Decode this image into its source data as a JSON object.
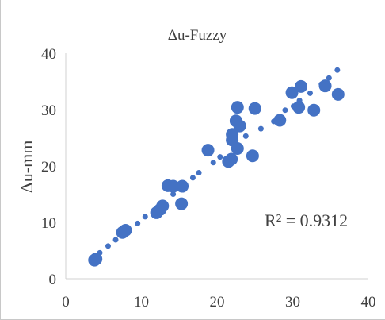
{
  "chart_data": {
    "type": "scatter",
    "title": "Δu-Fuzzy",
    "xlabel": "",
    "ylabel": "Δu-mm",
    "xlim": [
      0,
      40
    ],
    "ylim": [
      0,
      40
    ],
    "xticks": [
      "0",
      "10",
      "20",
      "30",
      "40"
    ],
    "yticks": [
      "0",
      "10",
      "20",
      "30",
      "40"
    ],
    "grid": false,
    "annotation": "R² = 0.9312",
    "colors": {
      "point": "#4472c4",
      "axis": "#d0d0d0",
      "text": "#404040"
    },
    "series": [
      {
        "points": [
          [
            4.0,
            3.5
          ],
          [
            3.8,
            3.3
          ],
          [
            7.5,
            8.2
          ],
          [
            7.9,
            8.6
          ],
          [
            12.0,
            11.7
          ],
          [
            12.5,
            12.3
          ],
          [
            12.8,
            12.9
          ],
          [
            13.5,
            16.5
          ],
          [
            14.2,
            16.4
          ],
          [
            15.4,
            16.4
          ],
          [
            15.3,
            13.3
          ],
          [
            18.8,
            22.8
          ],
          [
            21.5,
            20.8
          ],
          [
            21.9,
            21.2
          ],
          [
            22.0,
            24.6
          ],
          [
            22.0,
            25.6
          ],
          [
            22.5,
            28.0
          ],
          [
            22.7,
            30.4
          ],
          [
            23.0,
            27.1
          ],
          [
            22.7,
            23.1
          ],
          [
            24.7,
            21.8
          ],
          [
            25.0,
            30.2
          ],
          [
            28.3,
            28.1
          ],
          [
            29.9,
            33.0
          ],
          [
            30.8,
            30.4
          ],
          [
            31.1,
            34.1
          ],
          [
            32.8,
            29.9
          ],
          [
            34.3,
            34.2
          ],
          [
            36.0,
            32.7
          ]
        ]
      }
    ],
    "trendline": {
      "points": [
        [
          4.5,
          4.6
        ],
        [
          5.6,
          5.8
        ],
        [
          6.6,
          6.9
        ],
        [
          9.5,
          9.8
        ],
        [
          10.5,
          11.0
        ],
        [
          14.2,
          15.0
        ],
        [
          16.8,
          17.9
        ],
        [
          17.6,
          18.8
        ],
        [
          19.5,
          20.6
        ],
        [
          20.4,
          21.6
        ],
        [
          23.8,
          25.3
        ],
        [
          25.8,
          26.6
        ],
        [
          27.5,
          27.9
        ],
        [
          29.0,
          29.9
        ],
        [
          30.1,
          30.6
        ],
        [
          30.9,
          31.6
        ],
        [
          32.3,
          32.9
        ],
        [
          33.8,
          34.5
        ],
        [
          34.8,
          35.6
        ],
        [
          35.9,
          37.0
        ]
      ]
    }
  }
}
